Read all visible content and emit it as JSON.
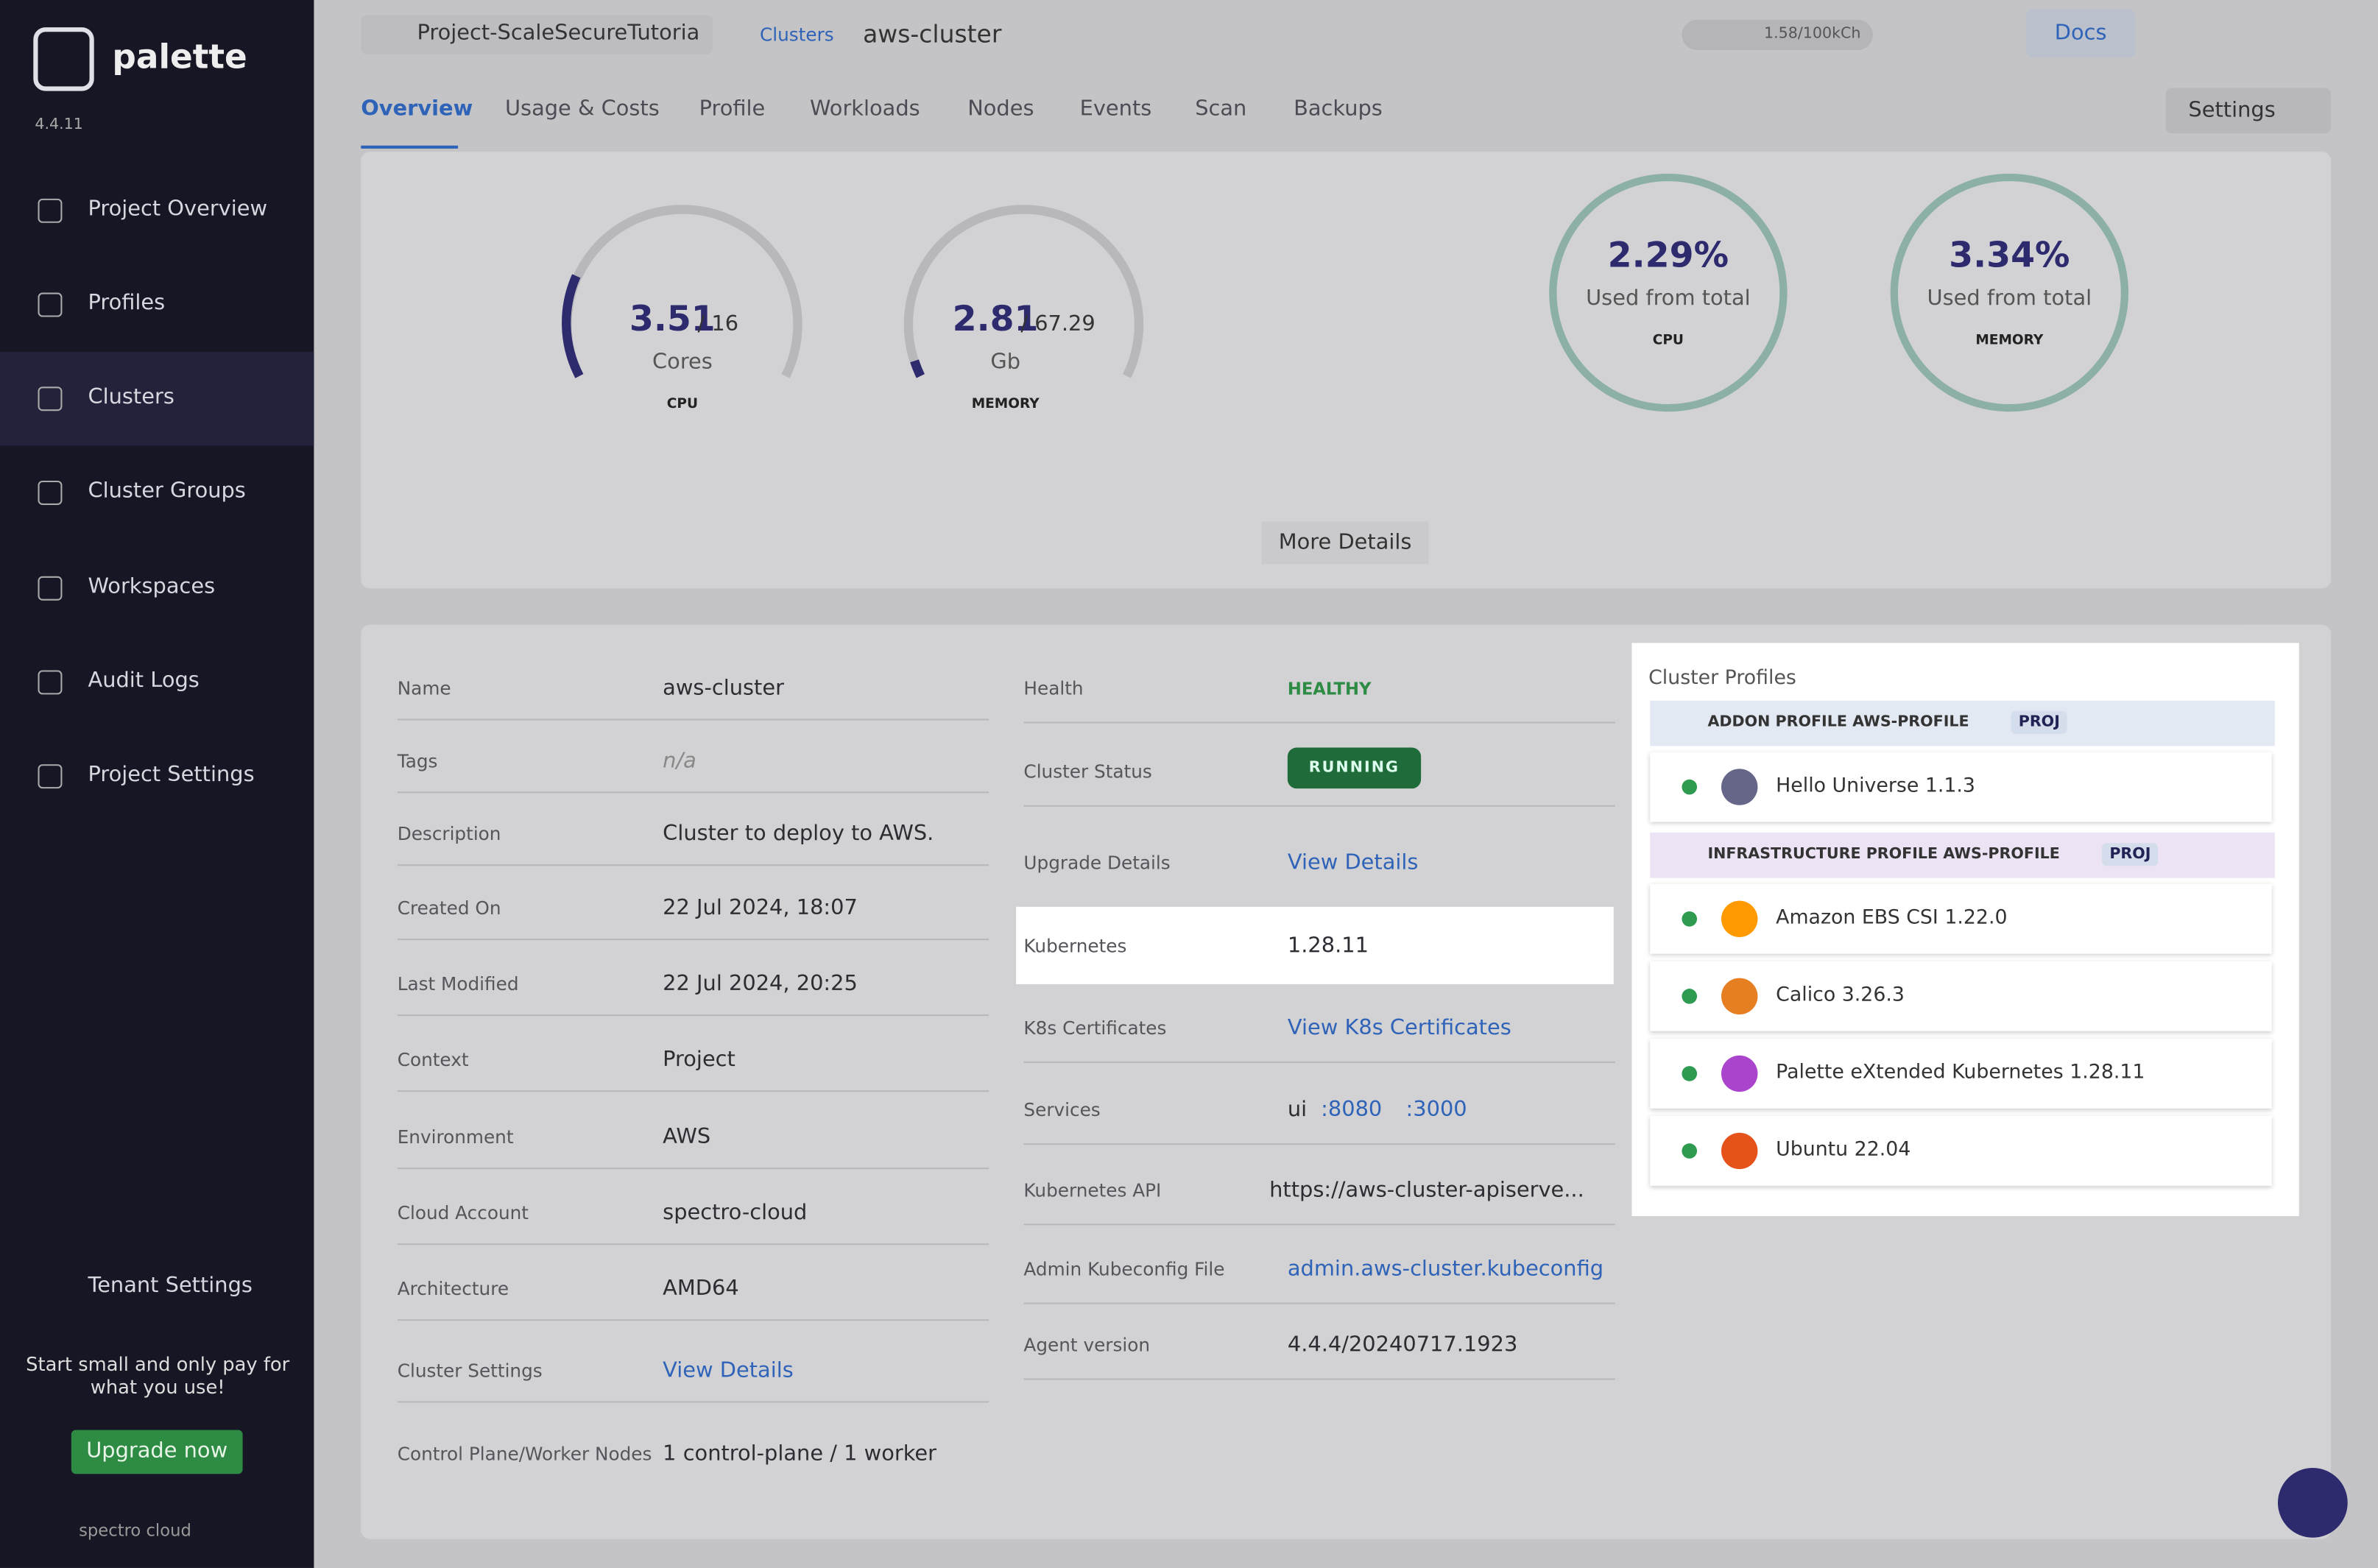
{
  "sidebar": {
    "logo": "palette",
    "version": "4.4.11",
    "nav": [
      "Project Overview",
      "Profiles",
      "Clusters",
      "Cluster Groups",
      "Workspaces",
      "Audit Logs",
      "Project Settings"
    ],
    "tenant": "Tenant Settings",
    "promo": "Start small and only pay for what you use!",
    "upgrade": "Upgrade now",
    "brand": "spectro cloud"
  },
  "header": {
    "project": "Project-ScaleSecureTutoria",
    "breadcrumb": [
      "Clusters",
      "aws-cluster"
    ],
    "credits": "1.58/100kCh",
    "docs": "Docs",
    "tabs": [
      "Overview",
      "Usage & Costs",
      "Profile",
      "Workloads",
      "Nodes",
      "Events",
      "Scan",
      "Backups"
    ],
    "settings": "Settings"
  },
  "usage": {
    "gauges": [
      {
        "value": "3.51",
        "total": "/ 16",
        "unit": "Cores",
        "label": "CPU"
      },
      {
        "value": "2.81",
        "total": "/ 67.29",
        "unit": "Gb",
        "label": "MEMORY"
      }
    ],
    "rings": [
      {
        "value": "2.29%",
        "caption": "Used from total",
        "label": "CPU"
      },
      {
        "value": "3.34%",
        "caption": "Used from total",
        "label": "MEMORY"
      }
    ],
    "more": "More Details"
  },
  "details": {
    "left": [
      [
        "Name",
        "aws-cluster"
      ],
      [
        "Tags",
        "n/a"
      ],
      [
        "Description",
        "Cluster to deploy to AWS."
      ],
      [
        "Created On",
        "22 Jul 2024, 18:07"
      ],
      [
        "Last Modified",
        "22 Jul 2024, 20:25"
      ],
      [
        "Context",
        "Project"
      ],
      [
        "Environment",
        "AWS"
      ],
      [
        "Cloud Account",
        "spectro-cloud"
      ],
      [
        "Architecture",
        "AMD64"
      ],
      [
        "Cluster Settings",
        "View Details"
      ],
      [
        "Control Plane/Worker Nodes",
        "1 control-plane / 1 worker"
      ]
    ],
    "middle": [
      [
        "Health",
        "HEALTHY"
      ],
      [
        "Cluster Status",
        "RUNNING"
      ],
      [
        "Upgrade Details",
        "View Details"
      ],
      [
        "Kubernetes",
        "1.28.11"
      ],
      [
        "K8s Certificates",
        "View K8s Certificates"
      ],
      [
        "Services",
        "ui"
      ],
      [
        "Kubernetes API",
        "https://aws-cluster-apiserve..."
      ],
      [
        "Admin Kubeconfig File",
        "admin.aws-cluster.kubeconfig"
      ],
      [
        "Agent version",
        "4.4.4/20240717.1923"
      ]
    ],
    "ports": [
      ":8080",
      ":3000"
    ]
  },
  "cluster_profiles": {
    "title": "Cluster Profiles",
    "groups": [
      {
        "title": "ADDON PROFILE AWS-PROFILE",
        "badge": "PROJ",
        "items": [
          "Hello Universe 1.1.3"
        ]
      },
      {
        "title": "INFRASTRUCTURE PROFILE AWS-PROFILE",
        "badge": "PROJ",
        "items": [
          "Amazon EBS CSI 1.22.0",
          "Calico 3.26.3",
          "Palette eXtended Kubernetes 1.28.11",
          "Ubuntu 22.04"
        ]
      }
    ]
  }
}
